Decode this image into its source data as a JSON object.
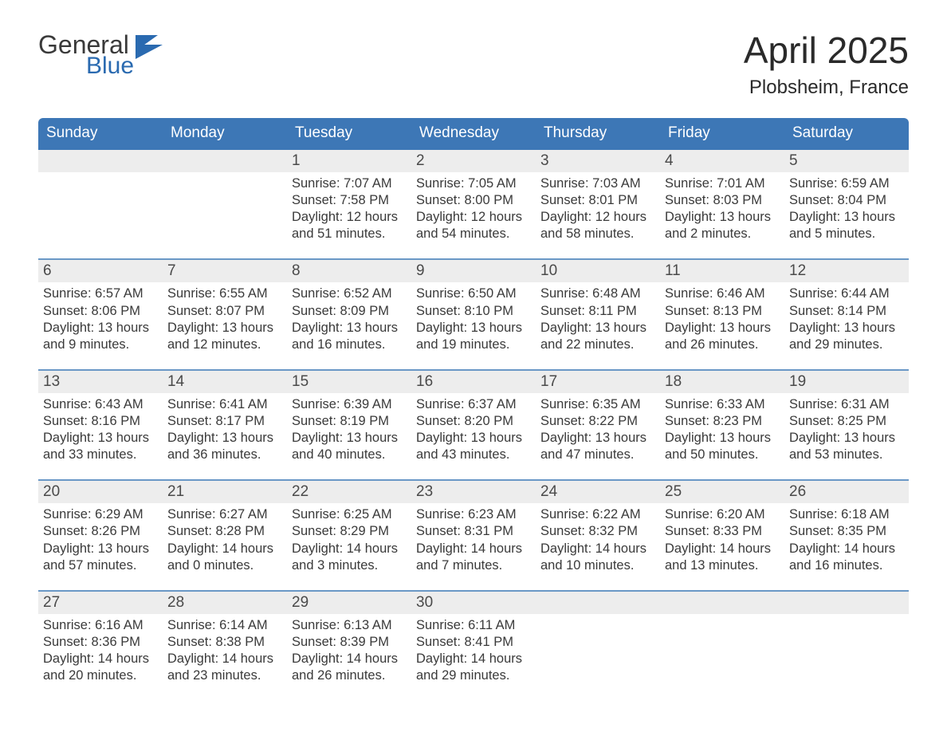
{
  "logo": {
    "top": "General",
    "bottom": "Blue",
    "flag_color": "#2a6ab0"
  },
  "title": "April 2025",
  "location": "Plobsheim, France",
  "colors": {
    "header_bg": "#3d77b6",
    "header_text": "#ffffff",
    "week_divider": "#6a98c6",
    "daynum_bg": "#ededed",
    "text": "#3a3a3a",
    "background": "#ffffff"
  },
  "typography": {
    "title_fontsize": 46,
    "location_fontsize": 24,
    "dayheader_fontsize": 19,
    "daynum_fontsize": 19,
    "info_fontsize": 16.5,
    "font_family": "Arial"
  },
  "day_names": [
    "Sunday",
    "Monday",
    "Tuesday",
    "Wednesday",
    "Thursday",
    "Friday",
    "Saturday"
  ],
  "weeks": [
    [
      {
        "num": "",
        "sunrise": "",
        "sunset": "",
        "daylight": ""
      },
      {
        "num": "",
        "sunrise": "",
        "sunset": "",
        "daylight": ""
      },
      {
        "num": "1",
        "sunrise": "Sunrise: 7:07 AM",
        "sunset": "Sunset: 7:58 PM",
        "daylight": "Daylight: 12 hours and 51 minutes."
      },
      {
        "num": "2",
        "sunrise": "Sunrise: 7:05 AM",
        "sunset": "Sunset: 8:00 PM",
        "daylight": "Daylight: 12 hours and 54 minutes."
      },
      {
        "num": "3",
        "sunrise": "Sunrise: 7:03 AM",
        "sunset": "Sunset: 8:01 PM",
        "daylight": "Daylight: 12 hours and 58 minutes."
      },
      {
        "num": "4",
        "sunrise": "Sunrise: 7:01 AM",
        "sunset": "Sunset: 8:03 PM",
        "daylight": "Daylight: 13 hours and 2 minutes."
      },
      {
        "num": "5",
        "sunrise": "Sunrise: 6:59 AM",
        "sunset": "Sunset: 8:04 PM",
        "daylight": "Daylight: 13 hours and 5 minutes."
      }
    ],
    [
      {
        "num": "6",
        "sunrise": "Sunrise: 6:57 AM",
        "sunset": "Sunset: 8:06 PM",
        "daylight": "Daylight: 13 hours and 9 minutes."
      },
      {
        "num": "7",
        "sunrise": "Sunrise: 6:55 AM",
        "sunset": "Sunset: 8:07 PM",
        "daylight": "Daylight: 13 hours and 12 minutes."
      },
      {
        "num": "8",
        "sunrise": "Sunrise: 6:52 AM",
        "sunset": "Sunset: 8:09 PM",
        "daylight": "Daylight: 13 hours and 16 minutes."
      },
      {
        "num": "9",
        "sunrise": "Sunrise: 6:50 AM",
        "sunset": "Sunset: 8:10 PM",
        "daylight": "Daylight: 13 hours and 19 minutes."
      },
      {
        "num": "10",
        "sunrise": "Sunrise: 6:48 AM",
        "sunset": "Sunset: 8:11 PM",
        "daylight": "Daylight: 13 hours and 22 minutes."
      },
      {
        "num": "11",
        "sunrise": "Sunrise: 6:46 AM",
        "sunset": "Sunset: 8:13 PM",
        "daylight": "Daylight: 13 hours and 26 minutes."
      },
      {
        "num": "12",
        "sunrise": "Sunrise: 6:44 AM",
        "sunset": "Sunset: 8:14 PM",
        "daylight": "Daylight: 13 hours and 29 minutes."
      }
    ],
    [
      {
        "num": "13",
        "sunrise": "Sunrise: 6:43 AM",
        "sunset": "Sunset: 8:16 PM",
        "daylight": "Daylight: 13 hours and 33 minutes."
      },
      {
        "num": "14",
        "sunrise": "Sunrise: 6:41 AM",
        "sunset": "Sunset: 8:17 PM",
        "daylight": "Daylight: 13 hours and 36 minutes."
      },
      {
        "num": "15",
        "sunrise": "Sunrise: 6:39 AM",
        "sunset": "Sunset: 8:19 PM",
        "daylight": "Daylight: 13 hours and 40 minutes."
      },
      {
        "num": "16",
        "sunrise": "Sunrise: 6:37 AM",
        "sunset": "Sunset: 8:20 PM",
        "daylight": "Daylight: 13 hours and 43 minutes."
      },
      {
        "num": "17",
        "sunrise": "Sunrise: 6:35 AM",
        "sunset": "Sunset: 8:22 PM",
        "daylight": "Daylight: 13 hours and 47 minutes."
      },
      {
        "num": "18",
        "sunrise": "Sunrise: 6:33 AM",
        "sunset": "Sunset: 8:23 PM",
        "daylight": "Daylight: 13 hours and 50 minutes."
      },
      {
        "num": "19",
        "sunrise": "Sunrise: 6:31 AM",
        "sunset": "Sunset: 8:25 PM",
        "daylight": "Daylight: 13 hours and 53 minutes."
      }
    ],
    [
      {
        "num": "20",
        "sunrise": "Sunrise: 6:29 AM",
        "sunset": "Sunset: 8:26 PM",
        "daylight": "Daylight: 13 hours and 57 minutes."
      },
      {
        "num": "21",
        "sunrise": "Sunrise: 6:27 AM",
        "sunset": "Sunset: 8:28 PM",
        "daylight": "Daylight: 14 hours and 0 minutes."
      },
      {
        "num": "22",
        "sunrise": "Sunrise: 6:25 AM",
        "sunset": "Sunset: 8:29 PM",
        "daylight": "Daylight: 14 hours and 3 minutes."
      },
      {
        "num": "23",
        "sunrise": "Sunrise: 6:23 AM",
        "sunset": "Sunset: 8:31 PM",
        "daylight": "Daylight: 14 hours and 7 minutes."
      },
      {
        "num": "24",
        "sunrise": "Sunrise: 6:22 AM",
        "sunset": "Sunset: 8:32 PM",
        "daylight": "Daylight: 14 hours and 10 minutes."
      },
      {
        "num": "25",
        "sunrise": "Sunrise: 6:20 AM",
        "sunset": "Sunset: 8:33 PM",
        "daylight": "Daylight: 14 hours and 13 minutes."
      },
      {
        "num": "26",
        "sunrise": "Sunrise: 6:18 AM",
        "sunset": "Sunset: 8:35 PM",
        "daylight": "Daylight: 14 hours and 16 minutes."
      }
    ],
    [
      {
        "num": "27",
        "sunrise": "Sunrise: 6:16 AM",
        "sunset": "Sunset: 8:36 PM",
        "daylight": "Daylight: 14 hours and 20 minutes."
      },
      {
        "num": "28",
        "sunrise": "Sunrise: 6:14 AM",
        "sunset": "Sunset: 8:38 PM",
        "daylight": "Daylight: 14 hours and 23 minutes."
      },
      {
        "num": "29",
        "sunrise": "Sunrise: 6:13 AM",
        "sunset": "Sunset: 8:39 PM",
        "daylight": "Daylight: 14 hours and 26 minutes."
      },
      {
        "num": "30",
        "sunrise": "Sunrise: 6:11 AM",
        "sunset": "Sunset: 8:41 PM",
        "daylight": "Daylight: 14 hours and 29 minutes."
      },
      {
        "num": "",
        "sunrise": "",
        "sunset": "",
        "daylight": ""
      },
      {
        "num": "",
        "sunrise": "",
        "sunset": "",
        "daylight": ""
      },
      {
        "num": "",
        "sunrise": "",
        "sunset": "",
        "daylight": ""
      }
    ]
  ]
}
